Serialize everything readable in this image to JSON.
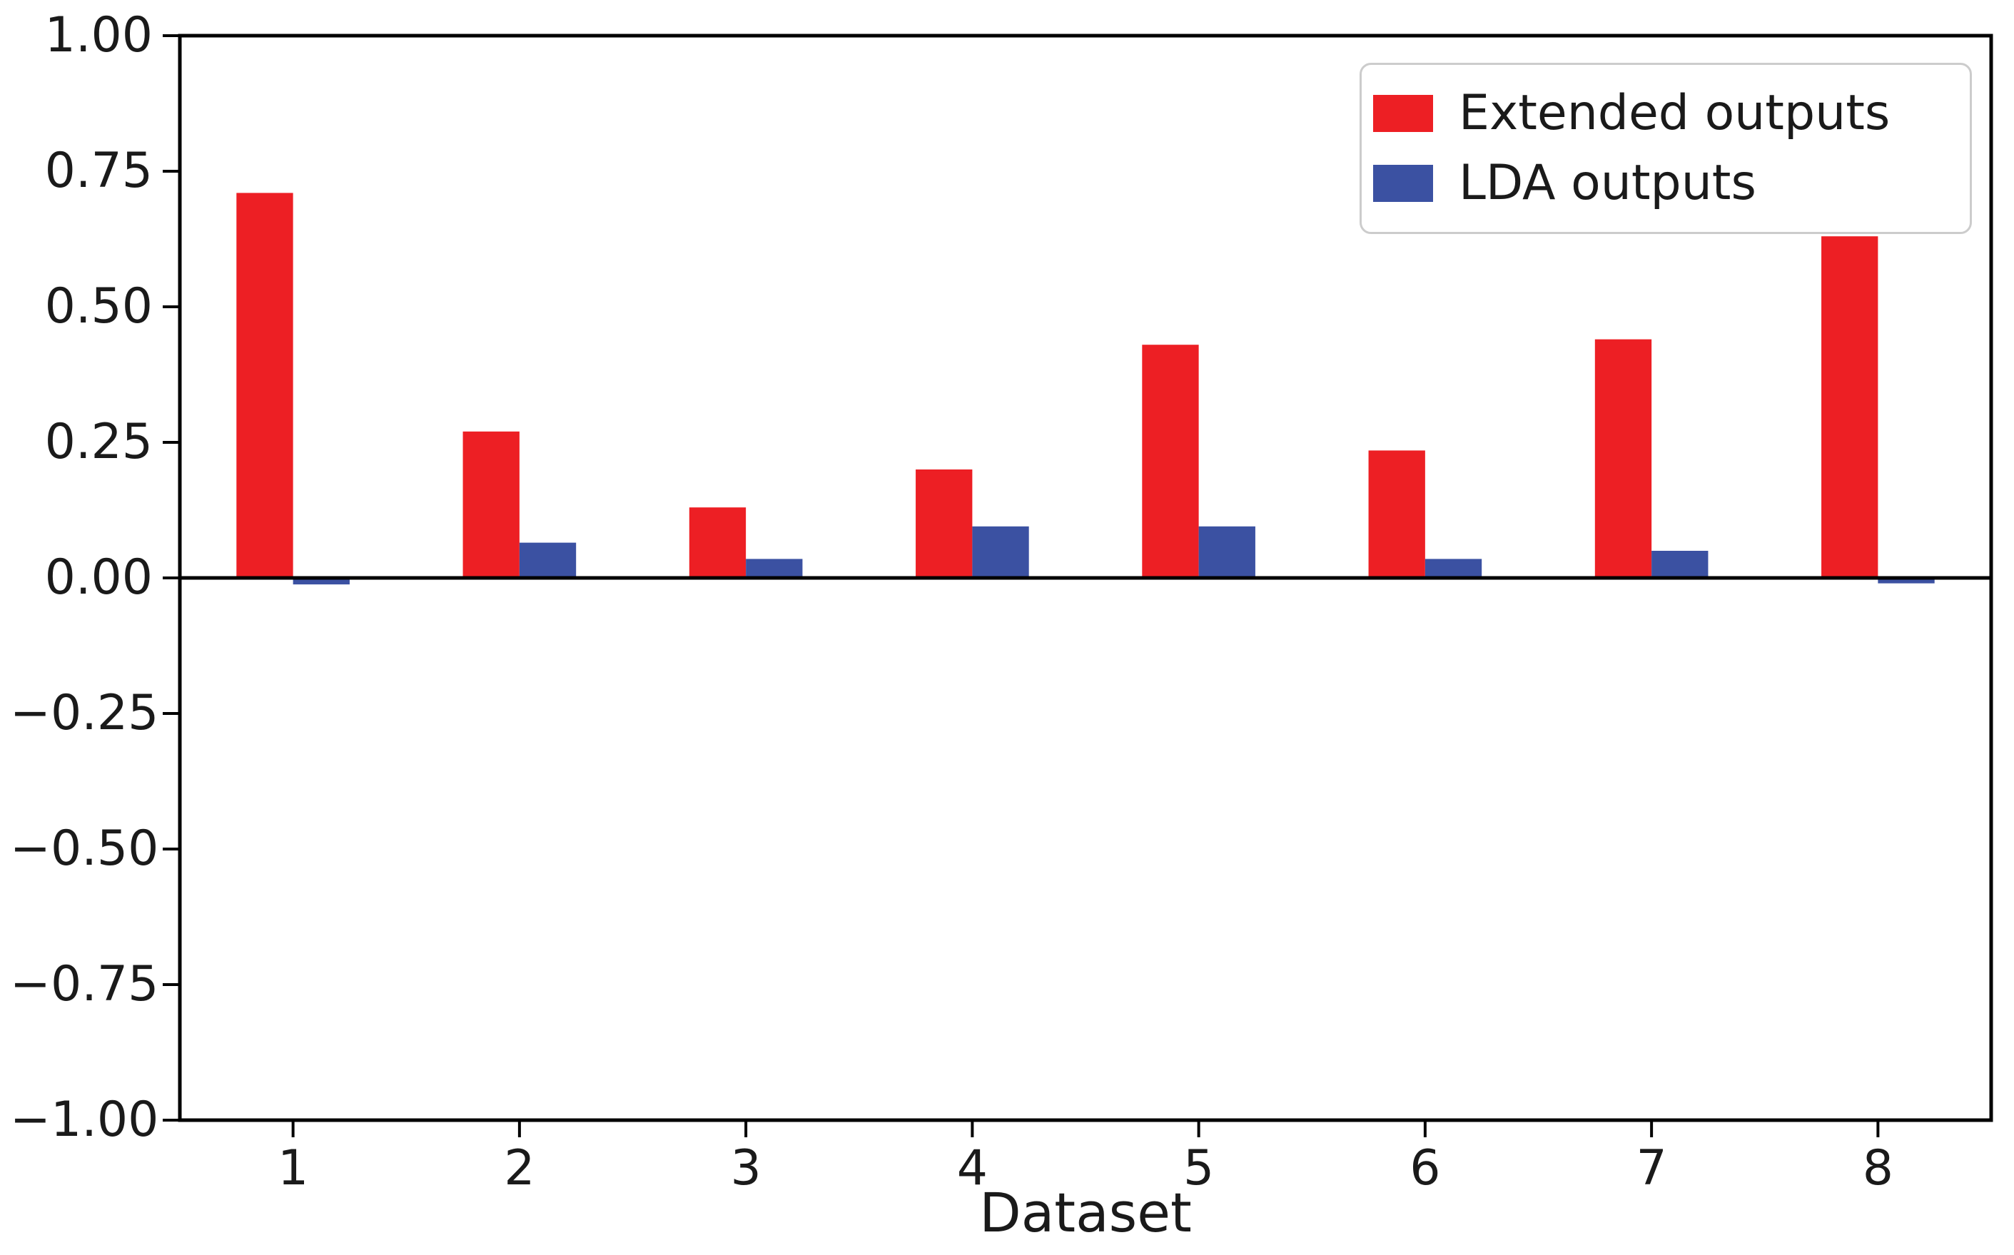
{
  "chart_data": {
    "type": "bar",
    "title": "",
    "xlabel": "Dataset",
    "ylabel": "",
    "categories": [
      1,
      2,
      3,
      4,
      5,
      6,
      7,
      8
    ],
    "series": [
      {
        "name": "Extended outputs",
        "color": "#ED1F24",
        "values": [
          0.71,
          0.27,
          0.13,
          0.2,
          0.43,
          0.235,
          0.44,
          0.63
        ]
      },
      {
        "name": "LDA outputs",
        "color": "#3B51A2",
        "values": [
          -0.012,
          0.065,
          0.035,
          0.095,
          0.095,
          0.035,
          0.05,
          -0.01
        ]
      }
    ],
    "bar_width": 0.25,
    "xlim": [
      0.5,
      8.5
    ],
    "ylim": [
      -1.0,
      1.0
    ],
    "ytick_values": [
      1.0,
      0.75,
      0.5,
      0.25,
      0.0,
      -0.25,
      -0.5,
      -0.75,
      -1.0
    ],
    "ytick_labels": [
      "1.00",
      "0.75",
      "0.50",
      "0.25",
      "0.00",
      "−0.25",
      "−0.50",
      "−0.75",
      "−1.00"
    ],
    "xtick_labels": [
      "1",
      "2",
      "3",
      "4",
      "5",
      "6",
      "7",
      "8"
    ],
    "grid": false,
    "legend_position": "upper right",
    "zero_line": true,
    "axis_color": "#000000",
    "background": "#ffffff"
  }
}
